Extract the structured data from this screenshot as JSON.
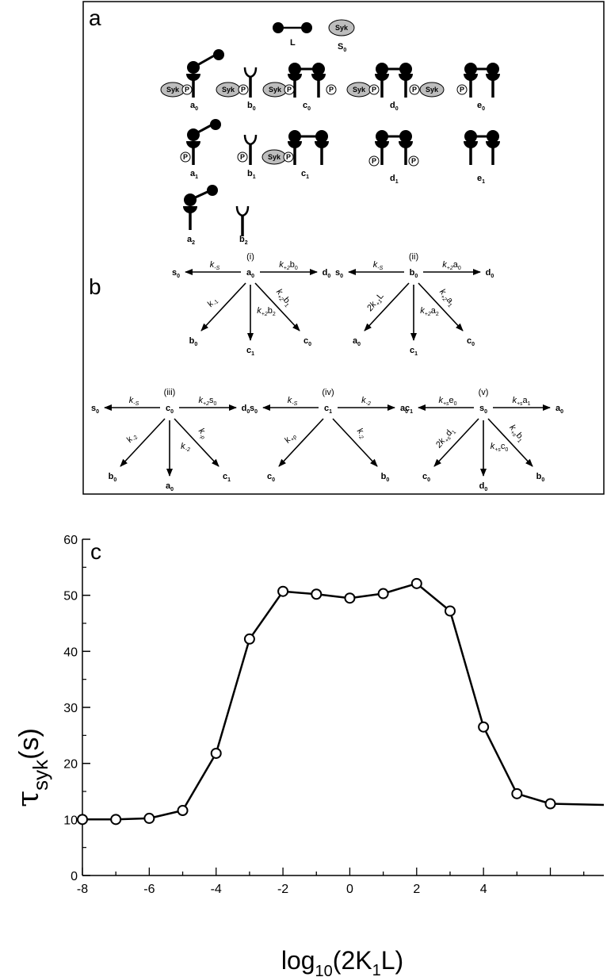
{
  "panel_a": {
    "letter": "a",
    "legend": {
      "ligand": "L",
      "syk_text": "Syk",
      "syk_label": "S",
      "syk_label_sub": "0"
    },
    "row0": [
      {
        "label": "a",
        "sub": "0"
      },
      {
        "label": "b",
        "sub": "0"
      },
      {
        "label": "c",
        "sub": "0"
      },
      {
        "label": "d",
        "sub": "0"
      },
      {
        "label": "e",
        "sub": "0"
      }
    ],
    "row1": [
      {
        "label": "a",
        "sub": "1"
      },
      {
        "label": "b",
        "sub": "1"
      },
      {
        "label": "c",
        "sub": "1"
      },
      {
        "label": "d",
        "sub": "1"
      },
      {
        "label": "e",
        "sub": "1"
      }
    ],
    "row2": [
      {
        "label": "a",
        "sub": "2"
      },
      {
        "label": "b",
        "sub": "2"
      }
    ],
    "syk_text": "Syk",
    "p_text": "P"
  },
  "panel_b": {
    "letter": "b",
    "schemes": [
      {
        "id": "i",
        "center": {
          "label": "a",
          "sub": "0"
        },
        "left": {
          "label": "s",
          "sub": "0",
          "rate": "k",
          "rate_sub": "-S"
        },
        "right": {
          "label": "d",
          "sub": "0",
          "rate": "k",
          "rate_sub": "+2",
          "rate_tail": "b",
          "rate_tail_sub": "0"
        },
        "down_left": {
          "label": "b",
          "sub": "0",
          "rate": "k",
          "rate_sub": "-1"
        },
        "down": {
          "label": "c",
          "sub": "1",
          "rate": "k",
          "rate_sub": "+2",
          "rate_tail": "b",
          "rate_tail_sub": "2"
        },
        "down_right": {
          "label": "c",
          "sub": "0",
          "rate": "k",
          "rate_sub": "+2",
          "rate_tail": "b",
          "rate_tail_sub": "1"
        }
      },
      {
        "id": "ii",
        "center": {
          "label": "b",
          "sub": "0"
        },
        "left": {
          "label": "s",
          "sub": "0",
          "rate": "k",
          "rate_sub": "-S"
        },
        "right": {
          "label": "d",
          "sub": "0",
          "rate": "k",
          "rate_sub": "+2",
          "rate_tail": "a",
          "rate_tail_sub": "0"
        },
        "down_left": {
          "label": "a",
          "sub": "0",
          "rate": "2k",
          "rate_sub": "+1",
          "rate_tail": "L",
          "rate_tail_sub": ""
        },
        "down": {
          "label": "c",
          "sub": "1",
          "rate": "k",
          "rate_sub": "+2",
          "rate_tail": "a",
          "rate_tail_sub": "2"
        },
        "down_right": {
          "label": "c",
          "sub": "0",
          "rate": "k",
          "rate_sub": "+2",
          "rate_tail": "a",
          "rate_tail_sub": "1"
        }
      },
      {
        "id": "iii",
        "center": {
          "label": "c",
          "sub": "0"
        },
        "left": {
          "label": "s",
          "sub": "0",
          "rate": "k",
          "rate_sub": "-S"
        },
        "right": {
          "label": "d",
          "sub": "0",
          "rate": "k",
          "rate_sub": "+2",
          "rate_tail": "s",
          "rate_tail_sub": "0"
        },
        "down_left": {
          "label": "b",
          "sub": "0",
          "rate": "k",
          "rate_sub": "-2"
        },
        "down": {
          "label": "a",
          "sub": "0",
          "rate": "k",
          "rate_sub": "-2"
        },
        "down_right": {
          "label": "c",
          "sub": "1",
          "rate": "k",
          "rate_sub": "-p"
        }
      },
      {
        "id": "iv",
        "center": {
          "label": "c",
          "sub": "1"
        },
        "left": {
          "label": "s",
          "sub": "0",
          "rate": "k",
          "rate_sub": "-S"
        },
        "right": {
          "label": "a",
          "sub": "0",
          "rate": "k",
          "rate_sub": "-2"
        },
        "down_left": {
          "label": "c",
          "sub": "0",
          "rate": "k",
          "rate_sub": "+p"
        },
        "down_right": {
          "label": "b",
          "sub": "0",
          "rate": "k",
          "rate_sub": "-2"
        }
      },
      {
        "id": "v",
        "center": {
          "label": "s",
          "sub": "0"
        },
        "left": {
          "label": "c",
          "sub": "1",
          "rate": "k",
          "rate_sub": "+s",
          "rate_tail": "e",
          "rate_tail_sub": "0"
        },
        "right": {
          "label": "a",
          "sub": "0",
          "rate": "k",
          "rate_sub": "+s",
          "rate_tail": "a",
          "rate_tail_sub": "1"
        },
        "down_left": {
          "label": "c",
          "sub": "0",
          "rate": "2k",
          "rate_sub": "+s",
          "rate_tail": "d",
          "rate_tail_sub": "1"
        },
        "down": {
          "label": "d",
          "sub": "0",
          "rate": "k",
          "rate_sub": "+s",
          "rate_tail": "c",
          "rate_tail_sub": "0"
        },
        "down_right": {
          "label": "b",
          "sub": "0",
          "rate": "k",
          "rate_sub": "+s",
          "rate_tail": "b",
          "rate_tail_sub": "1"
        }
      }
    ]
  },
  "chart_data": {
    "type": "line",
    "panel_letter": "c",
    "x": [
      -8,
      -7,
      -6,
      -5,
      -4,
      -3,
      -2,
      -1,
      0,
      1,
      2,
      3,
      4,
      5,
      6
    ],
    "y": [
      10.0,
      10.0,
      10.2,
      11.6,
      21.8,
      42.2,
      50.7,
      50.2,
      49.5,
      50.3,
      52.1,
      47.2,
      26.5,
      14.6,
      12.8
    ],
    "tail_x": 7.6,
    "tail_y": 12.6,
    "xlim": [
      -8,
      7.6
    ],
    "ylim": [
      0,
      60
    ],
    "x_ticks": [
      -8,
      -6,
      -4,
      -2,
      0,
      2,
      4
    ],
    "x_tick_labels": [
      "-8",
      "-6",
      "-4",
      "-2",
      "0",
      "2",
      "4"
    ],
    "y_ticks": [
      0,
      10,
      20,
      30,
      40,
      50,
      60
    ],
    "y_tick_labels": [
      "0",
      "10",
      "20",
      "30",
      "40",
      "50",
      "60"
    ],
    "xlabel": "log",
    "xlabel_sub": "10",
    "xlabel_rest": "(2K",
    "xlabel_sub2": "1",
    "xlabel_end": "L)",
    "ylabel": "τ",
    "ylabel_sub": "syk",
    "ylabel_rest": "(s)",
    "grid": false,
    "line_color": "#000000",
    "marker": "open-circle"
  }
}
